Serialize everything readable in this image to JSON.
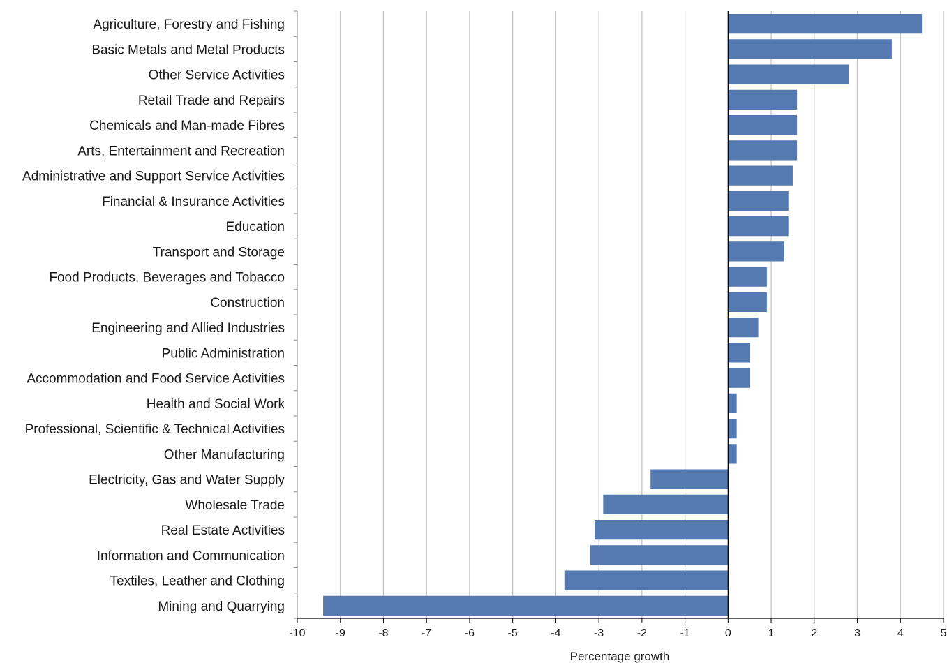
{
  "chart_data": {
    "type": "bar",
    "orientation": "horizontal",
    "title": "",
    "xlabel": "Percentage growth",
    "ylabel": "",
    "xlim": [
      -10,
      5
    ],
    "xticks": [
      -10,
      -9,
      -8,
      -7,
      -6,
      -5,
      -4,
      -3,
      -2,
      -1,
      0,
      1,
      2,
      3,
      4,
      5
    ],
    "grid": "vertical",
    "legend": "none",
    "bar_color": "#5579b1",
    "categories": [
      "Agriculture, Forestry and Fishing",
      "Basic Metals and Metal Products",
      "Other Service Activities",
      "Retail Trade and Repairs",
      "Chemicals and Man-made Fibres",
      "Arts, Entertainment and Recreation",
      "Administrative and Support Service Activities",
      "Financial & Insurance Activities",
      "Education",
      "Transport and Storage",
      "Food Products, Beverages and Tobacco",
      "Construction",
      "Engineering and Allied Industries",
      "Public Administration",
      "Accommodation and Food Service Activities",
      "Health and Social Work",
      "Professional, Scientific & Technical Activities",
      "Other Manufacturing",
      "Electricity, Gas and Water Supply",
      "Wholesale Trade",
      "Real Estate Activities",
      "Information and Communication",
      "Textiles, Leather and Clothing",
      "Mining and Quarrying"
    ],
    "values": [
      4.5,
      3.8,
      2.8,
      1.6,
      1.6,
      1.6,
      1.5,
      1.4,
      1.4,
      1.3,
      0.9,
      0.9,
      0.7,
      0.5,
      0.5,
      0.2,
      0.2,
      0.2,
      -1.8,
      -2.9,
      -3.1,
      -3.2,
      -3.8,
      -9.4
    ]
  }
}
